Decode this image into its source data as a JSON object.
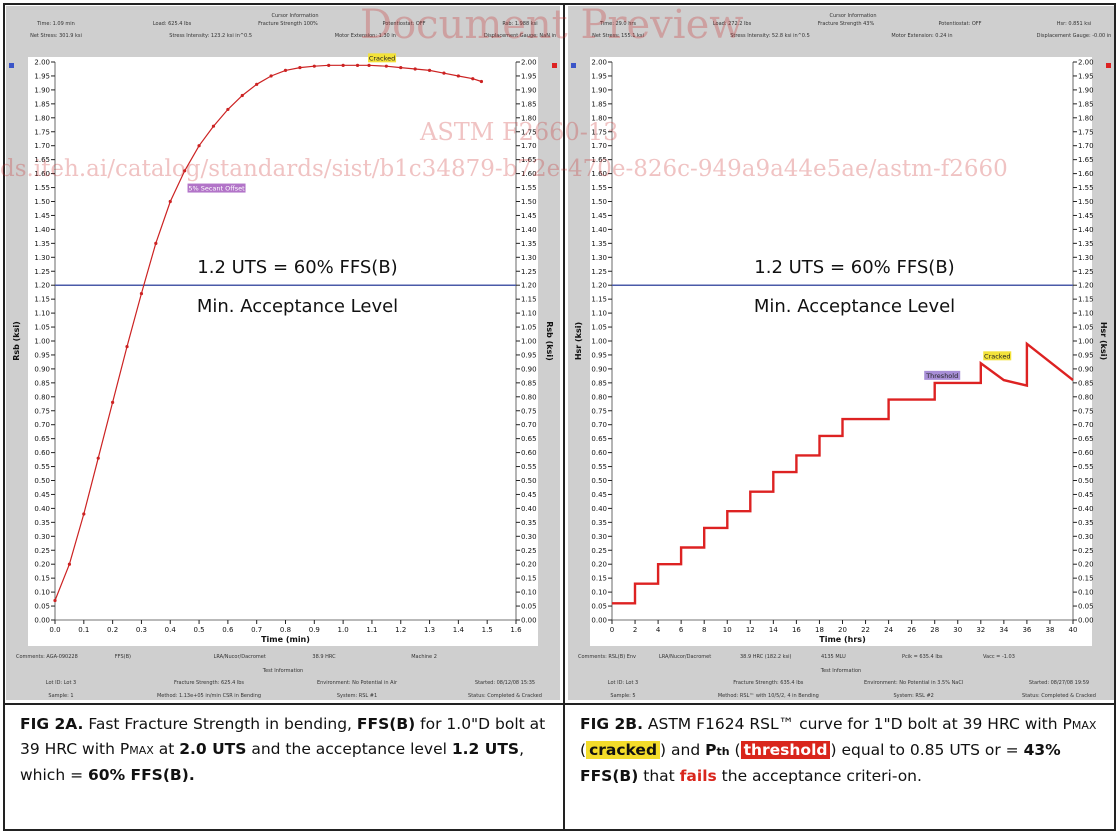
{
  "watermark": {
    "title": "Document Preview",
    "standard": "ASTM F2660-13",
    "url": "ds.iteh.ai/catalog/standards/sist/b1c34879-b72e-470e-826c-949a9a44e5ae/astm-f2660"
  },
  "panel_a": {
    "header": {
      "title": "Cursor Information",
      "rows": [
        [
          "Time: 1.09 min",
          "Load: 625.4 lbs",
          "Fracture Strength 100%",
          "Potentiostat: OFF",
          "Rsb: 1.988 ksi"
        ],
        [
          "Net Stress: 301.9 ksi",
          "Stress Intensity: 123.2 ksi in^0.5",
          "Motor Extension: 1.30 in",
          "Displacement Gauge: NaN in"
        ]
      ]
    },
    "footer": {
      "comments": [
        "Comments: AGA-090228",
        "FFS(B)",
        "LRA/Nucor/Dacromet",
        "38.9 HRC",
        "Machine 2"
      ],
      "title": "Test Information",
      "rows": [
        [
          "Lot ID: Lot 3",
          "Fracture Strength: 625.4 lbs",
          "Environment: No Potential in Air",
          "Started: 08/12/08 15:35"
        ],
        [
          "Sample: 1",
          "Method: 1.13e+05 in/min CSR in Bending",
          "System: RSL #1",
          "Status: Completed & Cracked"
        ]
      ]
    },
    "ylabel": "Rsb (ksi)",
    "ylabel_right": "Rsb (ksi)",
    "xlabel": "Time (min)",
    "annotation_line1": "1.2 UTS = 60% FFS(B)",
    "annotation_line2": "Min. Acceptance Level",
    "label_cracked": "Cracked",
    "label_offset": "5% Secant Offset"
  },
  "panel_b": {
    "header": {
      "title": "Cursor Information",
      "rows": [
        [
          "Time: 29.0 hrs",
          "Load: 272.2 lbs",
          "Fracture Strength 43%",
          "Potentiostat: OFF",
          "Hsr: 0.851 ksi"
        ],
        [
          "Net Stress: 155.1 ksi",
          "Stress Intensity: 52.8 ksi in^0.5",
          "Motor Extension: 0.24 in",
          "Displacement Gauge: -0.00 in"
        ]
      ]
    },
    "footer": {
      "comments": [
        "Comments: RSL(B) Env",
        "LRA/Nucor/Dacromet",
        "38.9 HRC (182.2 ksi)",
        "4135 MLU",
        "Pcik = 635.4 lbs",
        "Vacc = -1.03"
      ],
      "title": "Test Information",
      "rows": [
        [
          "Lot ID: Lot 3",
          "Fracture Strength: 635.4 lbs",
          "Environment: No Potential in 3.5% NaCl",
          "Started: 08/27/08 19:59"
        ],
        [
          "Sample: 5",
          "Method: RSL™ with 10/5/2, 4 in Bending",
          "System: RSL #2",
          "Status: Completed & Cracked"
        ]
      ]
    },
    "ylabel": "Hsr (ksi)",
    "ylabel_right": "Hsr (ksi)",
    "xlabel": "Time (hrs)",
    "annotation_line1": "1.2 UTS = 60% FFS(B)",
    "annotation_line2": "Min. Acceptance Level",
    "label_cracked": "Cracked",
    "label_threshold": "Threshold"
  },
  "captions": {
    "a": {
      "fig": "FIG 2A.",
      "t1": " Fast Fracture Strength in bending, ",
      "b1": "FFS(B)",
      "t2": " for 1.0\"D bolt at 39 HRC with P",
      "sc": "MAX",
      "t3": " at ",
      "b2": "2.0 UTS",
      "t4": " and the acceptance level ",
      "b3": "1.2 UTS",
      "t5": ", which = ",
      "b4": "60% FFS(B)."
    },
    "b": {
      "fig": "FIG 2B.",
      "t1": " ASTM F1624 RSL™ curve for 1\"D bolt at 39 HRC with P",
      "sc": "MAX",
      "t2": " (",
      "hl1": "cracked",
      "t3": ") and ",
      "pth": "P",
      "pth_sub": "th",
      "t4": " (",
      "hl2": "threshold",
      "t5": ") equal to 0.85 UTS or = ",
      "b1": "43% FFS(B)",
      "t6": " that ",
      "red": "fails",
      "t7": " the acceptance criteri-on."
    }
  },
  "chart_data": [
    {
      "type": "line",
      "title": "",
      "xlabel": "Time (min)",
      "ylabel": "Rsb (ksi)",
      "xlim": [
        0,
        1.6
      ],
      "ylim": [
        0,
        2.0
      ],
      "x_ticks": [
        0.0,
        0.1,
        0.2,
        0.3,
        0.4,
        0.5,
        0.6,
        0.7,
        0.8,
        0.9,
        1.0,
        1.1,
        1.2,
        1.3,
        1.4,
        1.5,
        1.6
      ],
      "y_tick_step": 0.05,
      "grid": false,
      "series": [
        {
          "color": "#cc2222",
          "x": [
            0,
            0.05,
            0.1,
            0.15,
            0.2,
            0.25,
            0.3,
            0.35,
            0.4,
            0.45,
            0.5,
            0.55,
            0.6,
            0.65,
            0.7,
            0.75,
            0.8,
            0.85,
            0.9,
            0.95,
            1.0,
            1.05,
            1.09,
            1.15,
            1.2,
            1.25,
            1.3,
            1.35,
            1.4,
            1.45,
            1.48
          ],
          "y": [
            0.07,
            0.2,
            0.38,
            0.58,
            0.78,
            0.98,
            1.17,
            1.35,
            1.5,
            1.61,
            1.7,
            1.77,
            1.83,
            1.88,
            1.92,
            1.95,
            1.97,
            1.98,
            1.985,
            1.988,
            1.988,
            1.988,
            1.988,
            1.985,
            1.98,
            1.975,
            1.97,
            1.96,
            1.95,
            1.94,
            1.93
          ]
        }
      ],
      "reference_line": {
        "y": 1.2,
        "color": "#4a5aa8",
        "label": "1.2 UTS = 60% FFS(B)"
      },
      "annotations": [
        {
          "text": "Cracked",
          "x": 1.09,
          "y": 1.988
        },
        {
          "text": "5% Secant Offset",
          "x": 0.46,
          "y": 1.55
        }
      ]
    },
    {
      "type": "line",
      "title": "",
      "xlabel": "Time (hrs)",
      "ylabel": "Hsr (ksi)",
      "xlim": [
        0,
        40
      ],
      "ylim": [
        0,
        2.0
      ],
      "x_ticks": [
        0,
        2,
        4,
        6,
        8,
        10,
        12,
        14,
        16,
        18,
        20,
        22,
        24,
        26,
        28,
        30,
        32,
        34,
        36,
        38,
        40
      ],
      "y_tick_step": 0.05,
      "grid": false,
      "series": [
        {
          "color": "#dd2222",
          "x": [
            0,
            1,
            1,
            2,
            2,
            3,
            3,
            4,
            4,
            5,
            5,
            6,
            6,
            7,
            7,
            8,
            8,
            9,
            9,
            10,
            10,
            11,
            11,
            12,
            12,
            13,
            13,
            14,
            14,
            15,
            15,
            16,
            16,
            17,
            17,
            18,
            18,
            20,
            20,
            22,
            22,
            24,
            24,
            26,
            26,
            28,
            28,
            30,
            30,
            32,
            32,
            34,
            36,
            36,
            40
          ],
          "y": [
            0.06,
            0.06,
            0.06,
            0.06,
            0.13,
            0.13,
            0.13,
            0.13,
            0.2,
            0.2,
            0.2,
            0.2,
            0.26,
            0.26,
            0.26,
            0.26,
            0.33,
            0.33,
            0.33,
            0.33,
            0.39,
            0.39,
            0.39,
            0.39,
            0.46,
            0.46,
            0.46,
            0.46,
            0.53,
            0.53,
            0.53,
            0.53,
            0.59,
            0.59,
            0.59,
            0.59,
            0.66,
            0.66,
            0.72,
            0.72,
            0.72,
            0.72,
            0.79,
            0.79,
            0.79,
            0.79,
            0.85,
            0.85,
            0.85,
            0.85,
            0.92,
            0.86,
            0.84,
            0.99,
            0.86
          ]
        }
      ],
      "reference_line": {
        "y": 1.2,
        "color": "#4a5aa8",
        "label": "1.2 UTS = 60% FFS(B)"
      },
      "annotations": [
        {
          "text": "Threshold",
          "x": 29,
          "y": 0.85
        },
        {
          "text": "Cracked",
          "x": 32.3,
          "y": 0.92
        }
      ]
    }
  ]
}
